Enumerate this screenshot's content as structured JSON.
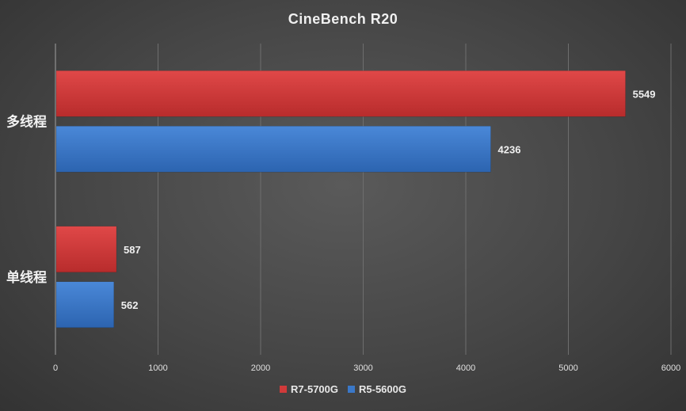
{
  "chart_data": {
    "type": "bar",
    "orientation": "horizontal",
    "title": "CineBench R20",
    "categories": [
      "多线程",
      "单线程"
    ],
    "series": [
      {
        "name": "R7-5700G",
        "values": [
          5549,
          587
        ],
        "color": "#d03a3a"
      },
      {
        "name": "R5-5600G",
        "values": [
          4236,
          562
        ],
        "color": "#3a78c8"
      }
    ],
    "xlim": [
      0,
      6000
    ],
    "xticks": [
      0,
      1000,
      2000,
      3000,
      4000,
      5000,
      6000
    ],
    "grid": true,
    "legend": "bottom-center"
  }
}
